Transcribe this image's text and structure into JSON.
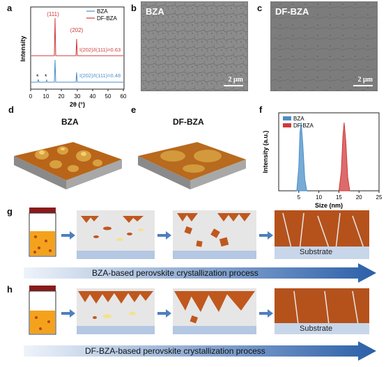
{
  "panels": {
    "a": "a",
    "b": "b",
    "c": "c",
    "d": "d",
    "e": "e",
    "f": "f",
    "g": "g",
    "h": "h"
  },
  "xrd": {
    "ylabel": "Intensity",
    "xlabel": "2θ (°)",
    "legend": [
      "BZA",
      "DF-BZA"
    ],
    "peak_111": "(111)",
    "peak_202": "(202)",
    "ratio_dfbza": "I(202)/I(111)=0.63",
    "ratio_bza": "I(202)/I(111)=0.48",
    "star1": "*",
    "star2": "*",
    "ticks": [
      "0",
      "10",
      "20",
      "30",
      "40",
      "50",
      "60"
    ],
    "colors": {
      "bza": "#4a8fc8",
      "dfbza": "#d03a3a"
    }
  },
  "sem_b": {
    "label": "BZA",
    "scale": "2 μm"
  },
  "sem_c": {
    "label": "DF-BZA",
    "scale": "2 μm"
  },
  "afm_d": {
    "title": "BZA"
  },
  "afm_e": {
    "title": "DF-BZA"
  },
  "chart_data": {
    "type": "area",
    "title": "",
    "xlabel": "Size (nm)",
    "ylabel": "Intensity (a.u.)",
    "xlim": [
      0,
      25
    ],
    "x_ticks": [
      5,
      10,
      15,
      20,
      25
    ],
    "legend": "top-left",
    "series": [
      {
        "name": "BZA",
        "color": "#4a8fc8",
        "x": [
          4.5,
          5.0,
          5.3,
          5.6,
          6.0,
          6.5,
          7.0
        ],
        "y": [
          0,
          12,
          30,
          35,
          24,
          6,
          0
        ]
      },
      {
        "name": "DF-BZA",
        "color": "#d03a3a",
        "x": [
          15.0,
          15.6,
          16.0,
          16.3,
          16.7,
          17.2,
          17.7
        ],
        "y": [
          0,
          10,
          28,
          35,
          26,
          7,
          0
        ]
      }
    ]
  },
  "process_g": {
    "substrate": "Substrate",
    "caption": "BZA-based perovskite crystallization process"
  },
  "process_h": {
    "substrate": "Substrate",
    "caption": "DF-BZA-based perovskite crystallization process"
  }
}
